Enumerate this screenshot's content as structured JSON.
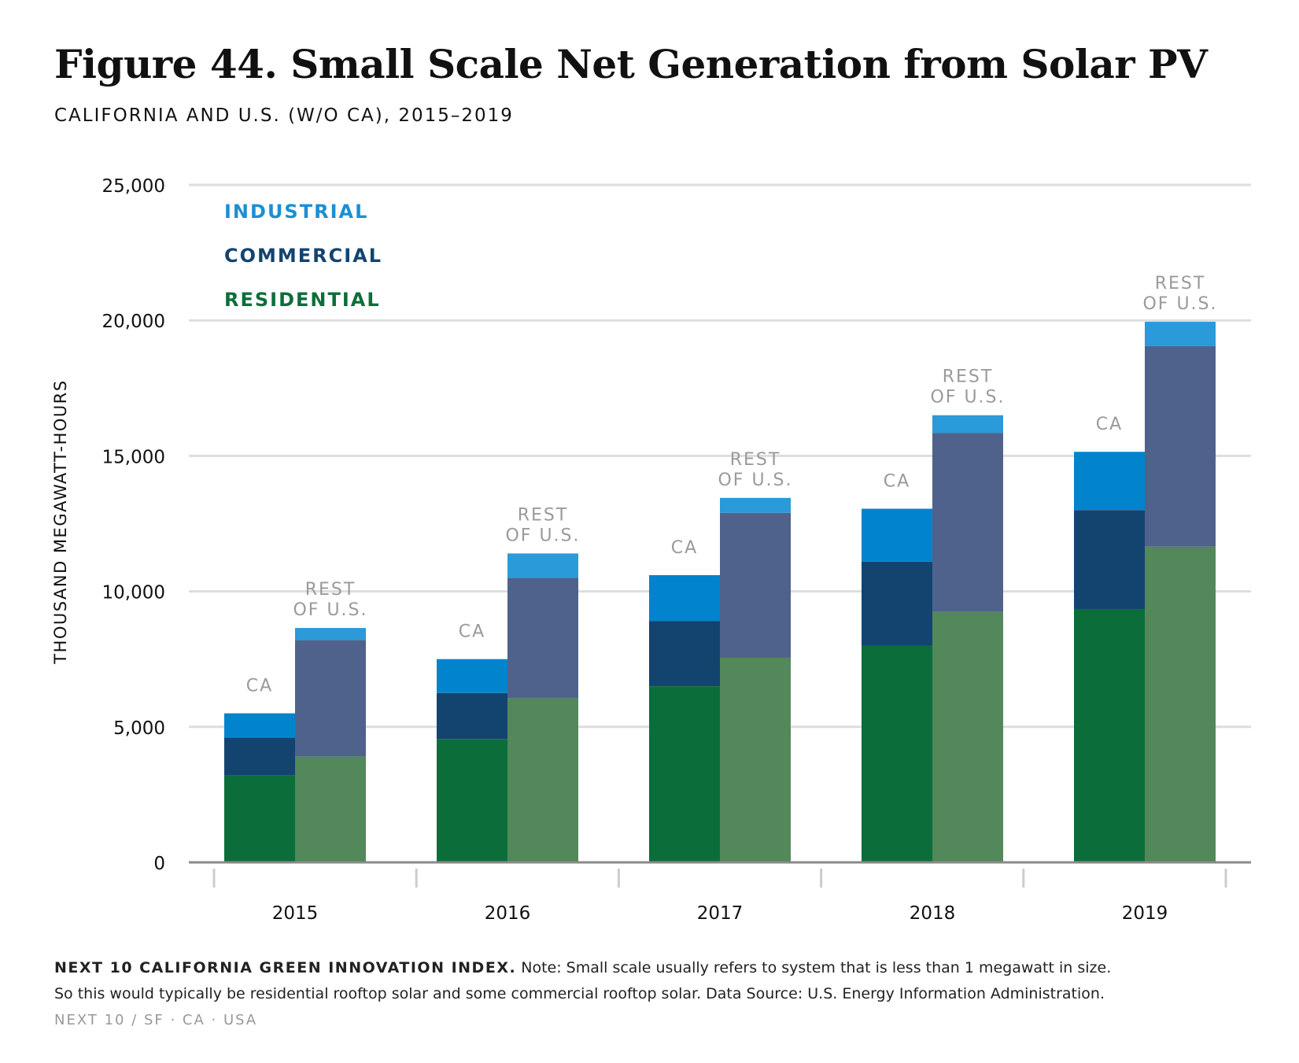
{
  "header": {
    "title": "Figure 44. Small Scale Net Generation from Solar PV",
    "subtitle": "CALIFORNIA AND U.S. (W/O CA), 2015–2019"
  },
  "chart_data": {
    "type": "bar",
    "stacked": true,
    "grouped": true,
    "ylabel": "THOUSAND MEGAWATT-HOURS",
    "ylim": [
      0,
      25000
    ],
    "yticks": [
      "0",
      "5,000",
      "10,000",
      "15,000",
      "20,000",
      "25,000"
    ],
    "grid": true,
    "legend_position": "top-left",
    "categories": [
      "2015",
      "2016",
      "2017",
      "2018",
      "2019"
    ],
    "legend": [
      {
        "label": "INDUSTRIAL",
        "color": "#1b8fd2"
      },
      {
        "label": "COMMERCIAL",
        "color": "#134470"
      },
      {
        "label": "RESIDENTIAL",
        "color": "#0b6e3a"
      }
    ],
    "groups": [
      {
        "label": "CA",
        "colors": {
          "residential": "#0b6e3a",
          "commercial": "#134470",
          "industrial": "#0284cc"
        },
        "residential": [
          3200,
          4550,
          6500,
          8000,
          9350
        ],
        "commercial": [
          1400,
          1700,
          2400,
          3100,
          3650
        ],
        "industrial": [
          900,
          1250,
          1700,
          1950,
          2150
        ]
      },
      {
        "label_line1": "REST",
        "label_line2": "OF U.S.",
        "colors": {
          "residential": "#52885a",
          "commercial": "#4f628c",
          "industrial": "#2a9ad8"
        },
        "residential": [
          3900,
          6050,
          7550,
          9250,
          11650
        ],
        "commercial": [
          4300,
          4450,
          5350,
          6600,
          7400
        ],
        "industrial": [
          450,
          900,
          550,
          650,
          900
        ]
      }
    ]
  },
  "footer": {
    "org": "NEXT 10 CALIFORNIA GREEN INNOVATION INDEX.",
    "note_line1": "Note: Small scale usually refers to system that is less than 1 megawatt in size.",
    "note_line2": "So this would typically be residential rooftop solar and some commercial rooftop solar. Data Source: U.S. Energy Information Administration.",
    "brand": "NEXT 10 / SF · CA · USA"
  }
}
